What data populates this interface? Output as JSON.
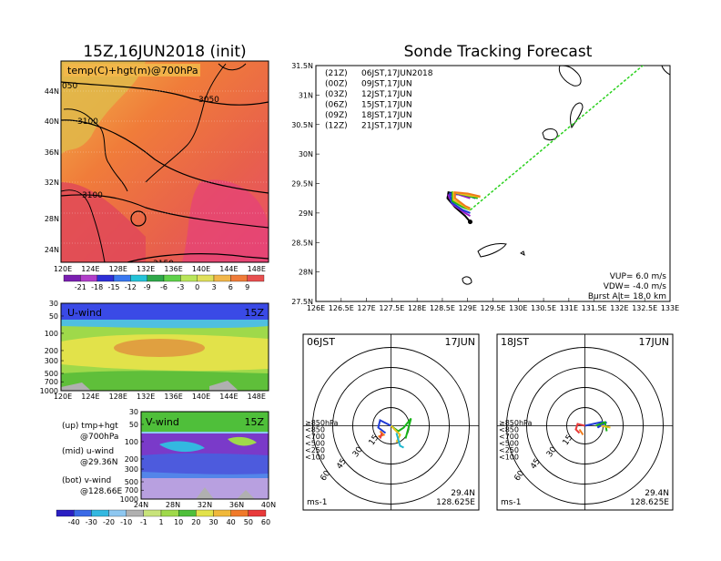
{
  "header": {
    "init_title": "15Z,16JUN2018 (init)",
    "main_title": "Sonde Tracking Forecast"
  },
  "temp_panel": {
    "label": "temp(C)+hgt(m)@700hPa",
    "contour_labels": [
      "3050",
      "3100",
      "3100",
      "3150",
      "050"
    ],
    "x_ticks": [
      "120E",
      "124E",
      "128E",
      "132E",
      "136E",
      "140E",
      "144E",
      "148E"
    ],
    "y_ticks": [
      "44N",
      "40N",
      "36N",
      "32N",
      "28N",
      "24N"
    ],
    "colorbar_labels": [
      "-21",
      "-18",
      "-15",
      "-12",
      "-9",
      "-6",
      "-3",
      "0",
      "3",
      "6",
      "9"
    ],
    "colorbar_colors": [
      "#7a1fb0",
      "#b13ec9",
      "#2e2fd6",
      "#3a78f0",
      "#25c3d8",
      "#2fa84a",
      "#5fd14a",
      "#b9e65a",
      "#e0e05a",
      "#f2b74a",
      "#f07c3a",
      "#e84f4f"
    ]
  },
  "u_panel": {
    "label": "U-wind",
    "time": "15Z",
    "y_ticks": [
      "30",
      "50",
      "100",
      "200",
      "300",
      "500",
      "700",
      "1000"
    ],
    "x_ticks": [
      "120E",
      "124E",
      "128E",
      "132E",
      "136E",
      "140E",
      "144E",
      "148E"
    ]
  },
  "v_panel": {
    "label": "V-wind",
    "time": "15Z",
    "y_ticks": [
      "30",
      "50",
      "100",
      "200",
      "300",
      "500",
      "700",
      "1000"
    ],
    "x_ticks": [
      "24N",
      "28N",
      "32N",
      "36N",
      "40N"
    ],
    "colorbar_labels": [
      "-40",
      "-30",
      "-20",
      "-10",
      "-1",
      "1",
      "10",
      "20",
      "30",
      "40",
      "50",
      "60"
    ],
    "colorbar_colors": [
      "#2b1fc2",
      "#3a6ae6",
      "#33b8e0",
      "#8ec7f0",
      "#b0b0b0",
      "#c8e37a",
      "#9fd94a",
      "#4fbf3a",
      "#e2e24a",
      "#f0b83a",
      "#f07a2a",
      "#e83a3a"
    ]
  },
  "legend_notes": {
    "up": "(up) tmp+hgt",
    "up2": "@700hPa",
    "mid": "(mid) u-wind",
    "mid2": "@29.36N",
    "bot": "(bot) v-wind",
    "bot2": "@128.66E"
  },
  "track_panel": {
    "legend": [
      {
        "code": "(21Z)",
        "text": "06JST,17JUN2018",
        "color": "#000000"
      },
      {
        "code": "(00Z)",
        "text": "09JST,17JUN",
        "color": "#9b19c9"
      },
      {
        "code": "(03Z)",
        "text": "12JST,17JUN",
        "color": "#1f3bd6"
      },
      {
        "code": "(06Z)",
        "text": "15JST,17JUN",
        "color": "#18b418"
      },
      {
        "code": "(09Z)",
        "text": "18JST,17JUN",
        "color": "#e6c020"
      },
      {
        "code": "(12Z)",
        "text": "21JST,17JUN",
        "color": "#f07a1a"
      }
    ],
    "x_ticks": [
      "126E",
      "126.5E",
      "127E",
      "127.5E",
      "128E",
      "128.5E",
      "129E",
      "129.5E",
      "130E",
      "130.5E",
      "131E",
      "131.5E",
      "132E",
      "132.5E",
      "133E"
    ],
    "y_ticks": [
      "31.5N",
      "31N",
      "30.5N",
      "30N",
      "29.5N",
      "29N",
      "28.5N",
      "28N",
      "27.5N"
    ],
    "vup": "VUP=  6.0 m/s",
    "vdw": "VDW= -4.0 m/s",
    "burst": "Burst Alt= 18.0 km",
    "dotted_line_color": "#2bd11f"
  },
  "polar_left": {
    "time": "06JST",
    "date": "17JUN",
    "lat": "29.4N",
    "lon": "128.625E",
    "unit": "ms-1",
    "ring_labels": [
      "15",
      "30",
      "45",
      "60"
    ],
    "level_legend": [
      {
        "text": "≥850hPa",
        "color": "#e83a3a"
      },
      {
        "text": "<850",
        "color": "#f0a030"
      },
      {
        "text": "<700",
        "color": "#e6c020"
      },
      {
        "text": "<500",
        "color": "#18b418"
      },
      {
        "text": "<250",
        "color": "#1fb8d0"
      },
      {
        "text": "<100",
        "color": "#1f3bd6"
      }
    ]
  },
  "polar_right": {
    "time": "18JST",
    "date": "17JUN",
    "lat": "29.4N",
    "lon": "128.625E",
    "unit": "ms-1",
    "ring_labels": [
      "15",
      "30",
      "45",
      "60"
    ],
    "level_legend": [
      {
        "text": "≥850hPa",
        "color": "#e83a3a"
      },
      {
        "text": "<850",
        "color": "#f0a030"
      },
      {
        "text": "<700",
        "color": "#e6c020"
      },
      {
        "text": "<500",
        "color": "#18b418"
      },
      {
        "text": "<250",
        "color": "#1fb8d0"
      },
      {
        "text": "<100",
        "color": "#1f3bd6"
      }
    ]
  },
  "chart_data": [
    {
      "type": "heatmap",
      "title": "15Z,16JUN2018 (init)",
      "variable": "temp(C)+hgt(m)@700hPa",
      "xlim": [
        120,
        150
      ],
      "ylim": [
        22,
        48
      ],
      "colorbar_levels": [
        -21,
        -18,
        -15,
        -12,
        -9,
        -6,
        -3,
        0,
        3,
        6,
        9
      ],
      "contour_labels_m": [
        3050,
        3100,
        3100,
        3150
      ]
    },
    {
      "type": "heatmap",
      "variable": "U-wind",
      "time": "15Z",
      "pressure_levels_hPa": [
        30,
        50,
        100,
        200,
        300,
        500,
        700,
        1000
      ],
      "xlim": [
        120,
        150
      ]
    },
    {
      "type": "heatmap",
      "variable": "V-wind",
      "time": "15Z",
      "pressure_levels_hPa": [
        30,
        50,
        100,
        200,
        300,
        500,
        700,
        1000
      ],
      "xlim": [
        24,
        40
      ],
      "colorbar_levels": [
        -40,
        -30,
        -20,
        -10,
        -1,
        1,
        10,
        20,
        30,
        40,
        50,
        60
      ]
    },
    {
      "type": "line",
      "title": "Sonde Tracking Forecast",
      "xlim": [
        126,
        133
      ],
      "ylim": [
        27.5,
        31.5
      ],
      "launch_point": [
        129.05,
        28.85
      ],
      "series": [
        {
          "name": "(21Z)",
          "color": "#000000",
          "x": [
            129.05,
            128.95,
            128.75,
            128.6,
            128.62,
            128.9
          ],
          "y": [
            28.85,
            28.95,
            29.1,
            29.25,
            29.35,
            29.3
          ]
        },
        {
          "name": "(00Z)",
          "color": "#9b19c9",
          "x": [
            129.05,
            128.95,
            128.7,
            128.62,
            128.8,
            129.05
          ],
          "y": [
            28.95,
            29.0,
            29.15,
            29.3,
            29.32,
            29.25
          ]
        },
        {
          "name": "(03Z)",
          "color": "#1f3bd6",
          "x": [
            129.05,
            128.9,
            128.68,
            128.65,
            128.9,
            129.15
          ],
          "y": [
            29.0,
            29.05,
            29.18,
            29.33,
            29.33,
            29.25
          ]
        },
        {
          "name": "(06Z)",
          "color": "#18b418",
          "x": [
            129.05,
            128.9,
            128.7,
            128.7,
            128.95,
            129.2
          ],
          "y": [
            29.05,
            29.1,
            29.2,
            29.35,
            29.3,
            29.25
          ]
        },
        {
          "name": "(09Z)",
          "color": "#e6c020",
          "x": [
            129.05,
            128.92,
            128.72,
            128.72,
            129.0,
            129.25
          ],
          "y": [
            29.05,
            29.12,
            29.22,
            29.35,
            29.3,
            29.27
          ]
        },
        {
          "name": "(12Z)",
          "color": "#f07a1a",
          "x": [
            129.05,
            128.95,
            128.75,
            128.75,
            129.0,
            129.25
          ],
          "y": [
            29.08,
            29.12,
            29.25,
            29.35,
            29.33,
            29.28
          ]
        },
        {
          "name": "trajectory",
          "color": "#2bd11f",
          "x": [
            129.05,
            132.6
          ],
          "y": [
            29.05,
            31.6
          ]
        }
      ],
      "annotations": [
        "VUP=  6.0 m/s",
        "VDW= -4.0 m/s",
        "Burst Alt= 18.0 km"
      ]
    }
  ]
}
